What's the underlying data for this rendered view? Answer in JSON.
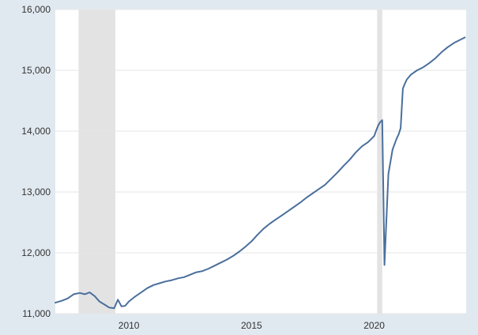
{
  "chart_data": {
    "type": "line",
    "title": "",
    "xlabel": "",
    "ylabel": "",
    "xlim": [
      2007.0,
      2023.75
    ],
    "ylim": [
      11000,
      16000
    ],
    "yticks": [
      11000,
      12000,
      13000,
      14000,
      15000,
      16000
    ],
    "ytick_labels": [
      "11,000",
      "12,000",
      "13,000",
      "14,000",
      "15,000",
      "16,000"
    ],
    "xticks": [
      2010,
      2015,
      2020
    ],
    "xtick_labels": [
      "2010",
      "2015",
      "2020"
    ],
    "grid": "horizontal",
    "legend": "none",
    "colors": {
      "line": "#4a6f9c",
      "recession": "#e3e3e3",
      "plot_bg": "#ffffff",
      "page_bg": "#e1e9f0"
    },
    "recessions": [
      [
        2007.95,
        2009.45
      ],
      [
        2020.12,
        2020.33
      ]
    ],
    "series": [
      {
        "x": [
          2007.0,
          2007.25,
          2007.5,
          2007.75,
          2008.0,
          2008.2,
          2008.4,
          2008.6,
          2008.8,
          2009.0,
          2009.2,
          2009.4,
          2009.55,
          2009.7,
          2009.85,
          2010.0,
          2010.25,
          2010.5,
          2010.75,
          2011.0,
          2011.25,
          2011.5,
          2011.75,
          2012.0,
          2012.25,
          2012.5,
          2012.75,
          2013.0,
          2013.25,
          2013.5,
          2013.75,
          2014.0,
          2014.25,
          2014.5,
          2014.75,
          2015.0,
          2015.25,
          2015.5,
          2015.75,
          2016.0,
          2016.25,
          2016.5,
          2016.75,
          2017.0,
          2017.25,
          2017.5,
          2017.75,
          2018.0,
          2018.25,
          2018.5,
          2018.75,
          2019.0,
          2019.25,
          2019.5,
          2019.75,
          2020.0,
          2020.1,
          2020.17,
          2020.25,
          2020.33,
          2020.42,
          2020.58,
          2020.75,
          2020.92,
          2021.0,
          2021.08,
          2021.17,
          2021.25,
          2021.33,
          2021.5,
          2021.75,
          2022.0,
          2022.25,
          2022.5,
          2022.75,
          2023.0,
          2023.25,
          2023.5,
          2023.7
        ],
        "values": [
          11180,
          11210,
          11250,
          11320,
          11340,
          11320,
          11350,
          11290,
          11200,
          11150,
          11100,
          11090,
          11230,
          11120,
          11130,
          11200,
          11280,
          11350,
          11420,
          11470,
          11500,
          11530,
          11550,
          11580,
          11600,
          11640,
          11680,
          11700,
          11740,
          11790,
          11840,
          11890,
          11950,
          12020,
          12100,
          12190,
          12300,
          12400,
          12480,
          12550,
          12620,
          12690,
          12760,
          12830,
          12910,
          12980,
          13050,
          13120,
          13220,
          13320,
          13430,
          13530,
          13650,
          13750,
          13820,
          13920,
          14030,
          14100,
          14150,
          14180,
          11800,
          13300,
          13700,
          13880,
          13950,
          14050,
          14700,
          14780,
          14850,
          14930,
          15000,
          15050,
          15120,
          15200,
          15300,
          15380,
          15450,
          15500,
          15540
        ]
      }
    ]
  }
}
